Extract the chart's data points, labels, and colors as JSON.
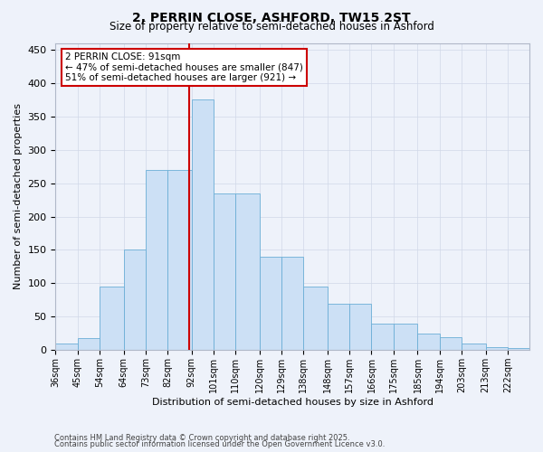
{
  "title": "2, PERRIN CLOSE, ASHFORD, TW15 2ST",
  "subtitle": "Size of property relative to semi-detached houses in Ashford",
  "xlabel": "Distribution of semi-detached houses by size in Ashford",
  "ylabel": "Number of semi-detached properties",
  "footnote1": "Contains HM Land Registry data © Crown copyright and database right 2025.",
  "footnote2": "Contains public sector information licensed under the Open Government Licence v3.0.",
  "property_label": "2 PERRIN CLOSE: 91sqm",
  "smaller_label": "← 47% of semi-detached houses are smaller (847)",
  "larger_label": "51% of semi-detached houses are larger (921) →",
  "property_value": 91,
  "bin_edges": [
    36,
    45,
    54,
    64,
    73,
    82,
    92,
    101,
    110,
    120,
    129,
    138,
    148,
    157,
    166,
    175,
    185,
    194,
    203,
    213,
    222,
    231
  ],
  "tick_labels": [
    "36sqm",
    "45sqm",
    "54sqm",
    "64sqm",
    "73sqm",
    "82sqm",
    "92sqm",
    "101sqm",
    "110sqm",
    "120sqm",
    "129sqm",
    "138sqm",
    "148sqm",
    "157sqm",
    "166sqm",
    "175sqm",
    "185sqm",
    "194sqm",
    "203sqm",
    "213sqm",
    "222sqm"
  ],
  "values": [
    10,
    18,
    95,
    150,
    270,
    270,
    375,
    235,
    235,
    140,
    140,
    95,
    70,
    70,
    40,
    40,
    25,
    20,
    10,
    5,
    3
  ],
  "bar_fill": "#cce0f5",
  "bar_edge": "#6baed6",
  "vline_color": "#cc0000",
  "annotation_box_color": "#cc0000",
  "grid_color": "#d0d8e8",
  "bg_color": "#eef2fa",
  "ylim": [
    0,
    460
  ],
  "yticks": [
    0,
    50,
    100,
    150,
    200,
    250,
    300,
    350,
    400,
    450
  ]
}
